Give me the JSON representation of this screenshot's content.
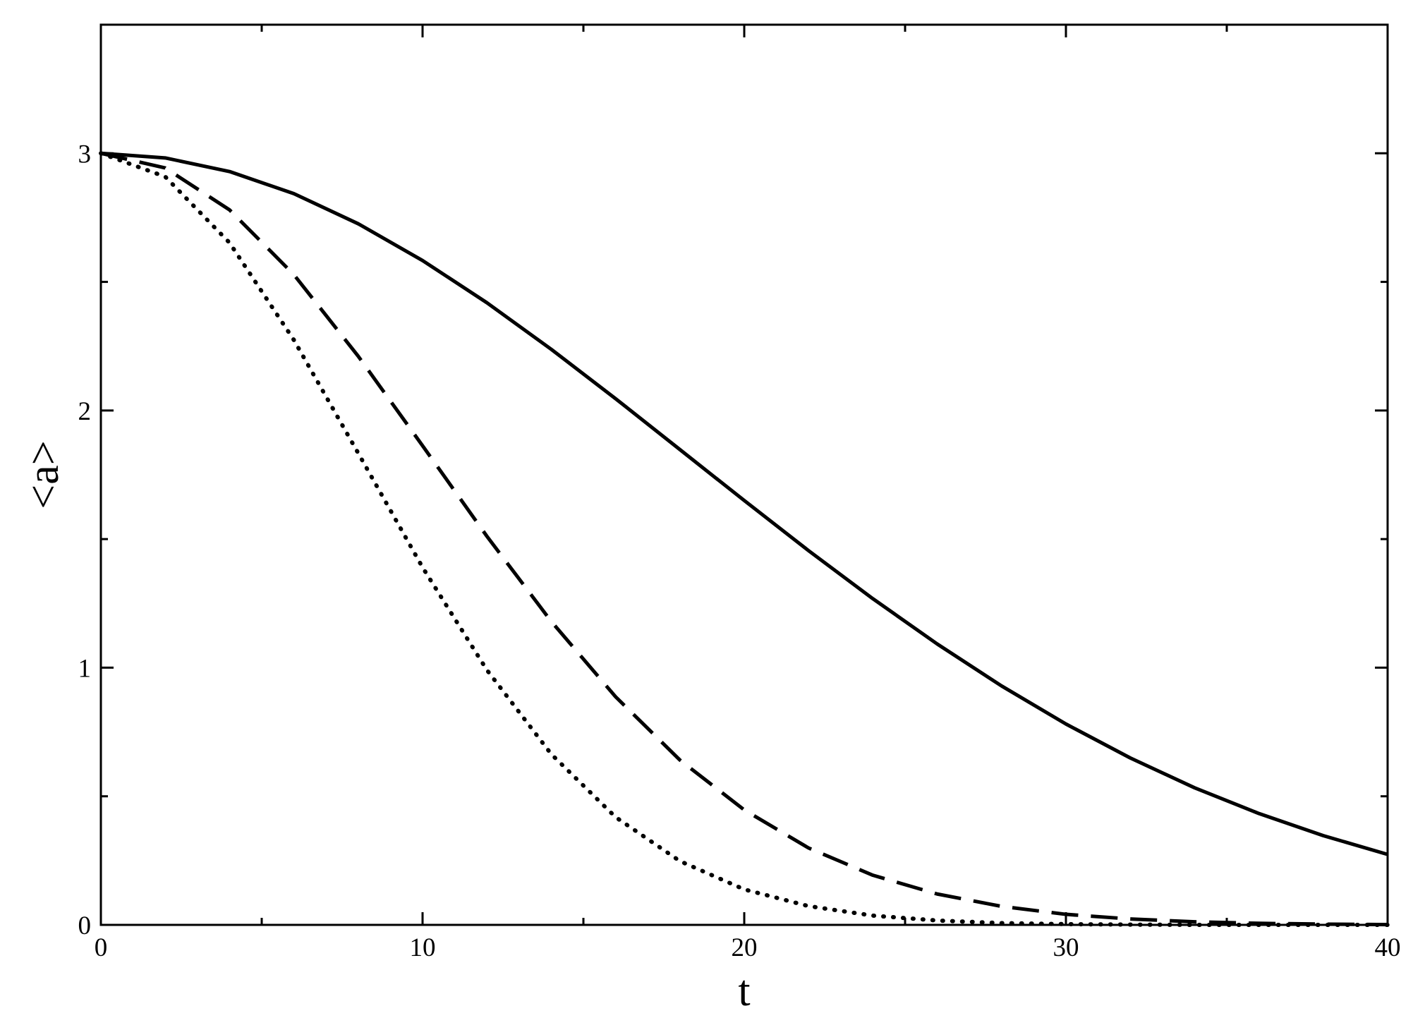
{
  "chart_data": {
    "type": "line",
    "x_label": "t",
    "y_label": "<a>",
    "x": [
      0,
      2,
      4,
      6,
      8,
      10,
      12,
      14,
      16,
      18,
      20,
      22,
      24,
      26,
      28,
      30,
      32,
      34,
      36,
      38,
      40
    ],
    "series": [
      {
        "color": "#000000",
        "dash": "solid",
        "values": [
          3,
          2.982,
          2.929,
          2.843,
          2.726,
          2.583,
          2.419,
          2.238,
          2.046,
          1.848,
          1.65,
          1.455,
          1.268,
          1.092,
          0.929,
          0.781,
          0.649,
          0.533,
          0.433,
          0.347,
          0.274
        ]
      },
      {
        "color": "#000000",
        "dash": "dashed",
        "values": [
          3,
          2.943,
          2.78,
          2.528,
          2.211,
          1.863,
          1.511,
          1.18,
          0.887,
          0.641,
          0.447,
          0.299,
          0.193,
          0.12,
          0.072,
          0.041,
          0.023,
          0.012,
          0.006,
          0.003,
          0.001
        ]
      },
      {
        "color": "#000000",
        "dash": "dotted",
        "values": [
          3,
          2.909,
          2.652,
          2.274,
          1.834,
          1.39,
          0.991,
          0.664,
          0.419,
          0.248,
          0.138,
          0.073,
          0.036,
          0.017,
          0.007,
          0.003,
          0.001,
          0,
          0,
          0,
          0
        ]
      }
    ],
    "xlim": [
      0,
      40
    ],
    "xticks": [
      0,
      10,
      20,
      30,
      40
    ],
    "xminor": [
      5,
      15,
      25,
      35
    ],
    "ylim": [
      0,
      3.5
    ],
    "yticks": [
      0,
      1,
      2,
      3
    ],
    "yminor": [
      0.5,
      1.5,
      2.5
    ],
    "grid": false
  }
}
